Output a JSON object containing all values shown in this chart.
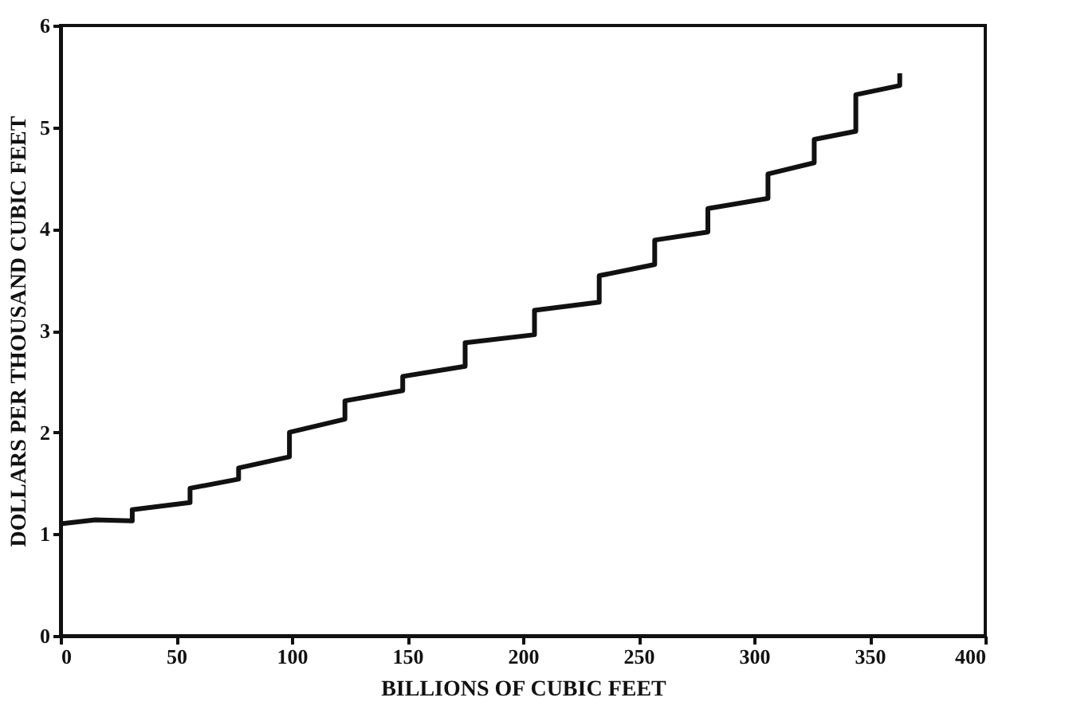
{
  "chart_data": {
    "type": "line",
    "xlabel": "BILLIONS OF CUBIC FEET",
    "ylabel": "DOLLARS PER THOUSAND CUBIC FEET",
    "xlim": [
      0,
      400
    ],
    "xticks": [
      0,
      50,
      100,
      150,
      200,
      250,
      300,
      350,
      400
    ],
    "ylim": [
      0,
      6
    ],
    "yticks": [
      0,
      1,
      2,
      3,
      4,
      5,
      6
    ],
    "grid": false,
    "marker": "none",
    "line_style": "solid",
    "series": [
      {
        "color": "#111111",
        "x": [
          0,
          15,
          31,
          31,
          56,
          56,
          77,
          77,
          99,
          99,
          123,
          123,
          148,
          148,
          175,
          175,
          205,
          205,
          233,
          233,
          257,
          257,
          280,
          280,
          306,
          306,
          326,
          326,
          344,
          344,
          363,
          363
        ],
        "values": [
          1.1,
          1.14,
          1.13,
          1.24,
          1.31,
          1.45,
          1.54,
          1.65,
          1.76,
          2.0,
          2.13,
          2.31,
          2.41,
          2.55,
          2.65,
          2.88,
          2.96,
          3.2,
          3.28,
          3.54,
          3.65,
          3.89,
          3.97,
          4.2,
          4.3,
          4.54,
          4.65,
          4.88,
          4.96,
          5.32,
          5.41,
          5.53
        ]
      }
    ]
  }
}
